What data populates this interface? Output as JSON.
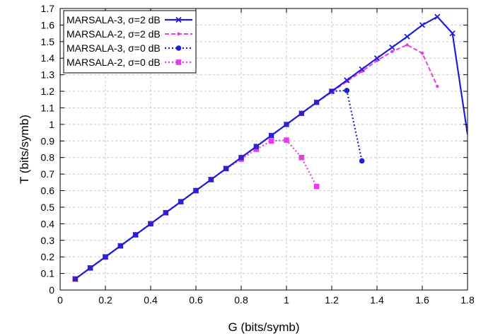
{
  "chart_data": {
    "type": "line",
    "xlabel": "G (bits/symb)",
    "ylabel": "T (bits/symb)",
    "xlim": [
      0,
      1.8
    ],
    "ylim": [
      0,
      1.7
    ],
    "xticks": [
      "0",
      "0.2",
      "0.4",
      "0.6",
      "0.8",
      "1",
      "1.2",
      "1.4",
      "1.6",
      "1.8"
    ],
    "yticks": [
      "0",
      "0.1",
      "0.2",
      "0.3",
      "0.4",
      "0.5",
      "0.6",
      "0.7",
      "0.8",
      "0.9",
      "1",
      "1.1",
      "1.2",
      "1.3",
      "1.4",
      "1.5",
      "1.6",
      "1.7"
    ],
    "grid": true,
    "legend_position": "top-left",
    "series": [
      {
        "name": "MARSALA-3, σ=2 dB",
        "color": "#1f1fd1",
        "dash": "solid",
        "marker": "x",
        "x": [
          0.0667,
          0.1333,
          0.2,
          0.2667,
          0.3333,
          0.4,
          0.4667,
          0.5333,
          0.6,
          0.6667,
          0.7333,
          0.8,
          0.8667,
          0.9333,
          1.0,
          1.0667,
          1.1333,
          1.2,
          1.2667,
          1.3333,
          1.4,
          1.4667,
          1.5333,
          1.6,
          1.6667,
          1.7333,
          1.8
        ],
        "y": [
          0.0667,
          0.1333,
          0.2,
          0.2667,
          0.3333,
          0.4,
          0.4667,
          0.5333,
          0.6,
          0.6667,
          0.7333,
          0.8,
          0.8667,
          0.9333,
          1.0,
          1.0667,
          1.1333,
          1.2,
          1.2667,
          1.3333,
          1.4,
          1.465,
          1.53,
          1.6,
          1.65,
          1.55,
          0.94
        ]
      },
      {
        "name": "MARSALA-2, σ=2 dB",
        "color": "#e83ce8",
        "dash": "dashed",
        "marker": "dot",
        "x": [
          0.0667,
          0.1333,
          0.2,
          0.2667,
          0.3333,
          0.4,
          0.4667,
          0.5333,
          0.6,
          0.6667,
          0.7333,
          0.8,
          0.8667,
          0.9333,
          1.0,
          1.0667,
          1.1333,
          1.2,
          1.2667,
          1.3333,
          1.4,
          1.4667,
          1.5333,
          1.6,
          1.6667
        ],
        "y": [
          0.0667,
          0.1333,
          0.2,
          0.2667,
          0.3333,
          0.4,
          0.4667,
          0.5333,
          0.6,
          0.6667,
          0.7333,
          0.8,
          0.8667,
          0.9333,
          1.0,
          1.0667,
          1.1333,
          1.195,
          1.26,
          1.32,
          1.385,
          1.44,
          1.48,
          1.43,
          1.23
        ]
      },
      {
        "name": "MARSALA-3, σ=0 dB",
        "color": "#1f1fd1",
        "dash": "dotted",
        "marker": "circle",
        "x": [
          0.0667,
          0.1333,
          0.2,
          0.2667,
          0.3333,
          0.4,
          0.4667,
          0.5333,
          0.6,
          0.6667,
          0.7333,
          0.8,
          0.8667,
          0.9333,
          1.0,
          1.0667,
          1.1333,
          1.2,
          1.2667,
          1.3333
        ],
        "y": [
          0.0667,
          0.1333,
          0.2,
          0.2667,
          0.3333,
          0.4,
          0.4667,
          0.5333,
          0.6,
          0.6667,
          0.7333,
          0.8,
          0.8667,
          0.9333,
          1.0,
          1.0667,
          1.1333,
          1.2,
          1.205,
          0.78
        ]
      },
      {
        "name": "MARSALA-2, σ=0 dB",
        "color": "#e83ce8",
        "dash": "dotted",
        "marker": "square",
        "x": [
          0.0667,
          0.1333,
          0.2,
          0.2667,
          0.3333,
          0.4,
          0.4667,
          0.5333,
          0.6,
          0.6667,
          0.7333,
          0.8,
          0.8667,
          0.9333,
          1.0,
          1.0667,
          1.1333
        ],
        "y": [
          0.0667,
          0.1333,
          0.2,
          0.2667,
          0.3333,
          0.4,
          0.4667,
          0.5333,
          0.6,
          0.6667,
          0.7333,
          0.79,
          0.85,
          0.9,
          0.905,
          0.8,
          0.625
        ]
      }
    ]
  }
}
